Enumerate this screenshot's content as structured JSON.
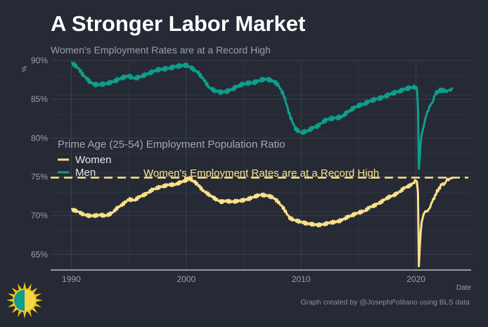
{
  "header": {
    "title": "A Stronger Labor Market",
    "subtitle": "Women's Employment Rates are at a Record High"
  },
  "credit": "Graph created by @JosephPolitano using BLS data",
  "colors": {
    "background": "#252a34",
    "women": "#ffe08a",
    "men": "#0f9e8c",
    "grid": "#363c48",
    "reference_line": "#ffe08a"
  },
  "logo_icon": "sun-logo-icon",
  "chart_data": {
    "type": "line",
    "title": "A Stronger Labor Market",
    "subtitle": "Women's Employment Rates are at a Record High",
    "xlabel": "Date",
    "ylabel": "%",
    "xlim": [
      1988.2,
      2024.8
    ],
    "ylim": [
      63,
      90
    ],
    "x_ticks": [
      1990,
      2000,
      2010,
      2020
    ],
    "x_tick_labels": [
      "1990",
      "2000",
      "2010",
      "2020"
    ],
    "y_ticks": [
      65,
      70,
      75,
      80,
      85,
      90
    ],
    "y_tick_labels": [
      "65%",
      "70%",
      "75%",
      "80%",
      "85%",
      "90%"
    ],
    "grid": true,
    "legend": {
      "title": "Prime Age (25-54) Employment Population Ratio",
      "placement": "left-middle",
      "entries": [
        "Women",
        "Men"
      ]
    },
    "reference_line": {
      "y": 74.9,
      "style": "dashed",
      "label": "Women's Employment Rates are at a Record High"
    },
    "series": [
      {
        "name": "Women",
        "x": [
          1990,
          1990.5,
          1991,
          1991.5,
          1992,
          1992.5,
          1993,
          1993.5,
          1994,
          1994.5,
          1995,
          1995.5,
          1996,
          1996.5,
          1997,
          1997.5,
          1998,
          1998.5,
          1999,
          1999.5,
          2000,
          2000.3,
          2000.7,
          2001,
          2001.5,
          2002,
          2002.5,
          2003,
          2003.5,
          2004,
          2004.5,
          2005,
          2005.5,
          2006,
          2006.5,
          2007,
          2007.5,
          2008,
          2008.5,
          2009,
          2009.5,
          2010,
          2010.5,
          2011,
          2011.5,
          2012,
          2012.5,
          2013,
          2013.5,
          2014,
          2014.5,
          2015,
          2015.5,
          2016,
          2016.5,
          2017,
          2017.5,
          2018,
          2018.5,
          2019,
          2019.5,
          2020,
          2020.08,
          2020.17,
          2020.25,
          2020.33,
          2020.42,
          2020.5,
          2020.67,
          2020.83,
          2021,
          2021.25,
          2021.5,
          2021.75,
          2022,
          2022.25,
          2022.5,
          2022.75,
          2023,
          2023.2
        ],
        "values": [
          70.8,
          70.6,
          70.2,
          70.0,
          70.0,
          70.1,
          70.0,
          70.3,
          71.0,
          71.5,
          72.1,
          72.0,
          72.5,
          72.8,
          73.3,
          73.6,
          73.8,
          74.0,
          74.0,
          74.3,
          74.6,
          74.8,
          74.4,
          74.0,
          73.2,
          72.7,
          72.2,
          71.8,
          71.9,
          71.8,
          71.9,
          72.0,
          72.2,
          72.5,
          72.7,
          72.6,
          72.4,
          71.8,
          70.9,
          69.7,
          69.4,
          69.2,
          69.0,
          68.9,
          68.8,
          68.9,
          69.1,
          69.2,
          69.4,
          69.8,
          70.1,
          70.4,
          70.6,
          71.1,
          71.4,
          71.8,
          72.3,
          72.6,
          73.0,
          73.6,
          73.9,
          74.5,
          74.4,
          73.0,
          63.5,
          66.0,
          68.0,
          69.2,
          70.2,
          70.6,
          70.5,
          71.3,
          72.0,
          72.9,
          73.5,
          74.0,
          74.2,
          74.6,
          74.8,
          74.9
        ]
      },
      {
        "name": "Men",
        "x": [
          1990,
          1990.5,
          1991,
          1991.5,
          1992,
          1992.5,
          1993,
          1993.5,
          1994,
          1994.5,
          1995,
          1995.5,
          1996,
          1996.5,
          1997,
          1997.5,
          1998,
          1998.5,
          1999,
          1999.5,
          2000,
          2000.5,
          2001,
          2001.5,
          2002,
          2002.5,
          2003,
          2003.5,
          2004,
          2004.5,
          2005,
          2005.5,
          2006,
          2006.5,
          2007,
          2007.5,
          2008,
          2008.5,
          2009,
          2009.5,
          2010,
          2010.5,
          2011,
          2011.5,
          2012,
          2012.5,
          2013,
          2013.5,
          2014,
          2014.5,
          2015,
          2015.5,
          2016,
          2016.5,
          2017,
          2017.5,
          2018,
          2018.5,
          2019,
          2019.5,
          2020,
          2020.08,
          2020.17,
          2020.25,
          2020.33,
          2020.42,
          2020.5,
          2020.67,
          2020.83,
          2021,
          2021.25,
          2021.5,
          2021.75,
          2022,
          2022.25,
          2022.5,
          2022.75,
          2023,
          2023.2
        ],
        "values": [
          89.7,
          89.2,
          88.2,
          87.4,
          86.9,
          86.9,
          87.0,
          87.2,
          87.5,
          87.8,
          88.0,
          87.7,
          87.9,
          88.2,
          88.5,
          88.8,
          88.9,
          89.0,
          89.2,
          89.3,
          89.4,
          89.0,
          88.5,
          87.6,
          86.5,
          86.1,
          85.9,
          86.0,
          86.3,
          86.7,
          87.0,
          87.1,
          87.2,
          87.5,
          87.6,
          87.4,
          86.9,
          85.5,
          83.0,
          81.2,
          80.7,
          80.9,
          81.3,
          81.6,
          82.2,
          82.5,
          82.6,
          82.7,
          83.3,
          83.8,
          84.2,
          84.4,
          84.8,
          85.0,
          85.2,
          85.5,
          85.8,
          86.0,
          86.3,
          86.5,
          86.6,
          86.5,
          84.0,
          76.0,
          77.6,
          79.5,
          80.5,
          81.5,
          82.6,
          83.4,
          84.1,
          85.0,
          85.8,
          86.1,
          86.2,
          86.0,
          86.2,
          86.1,
          86.5
        ]
      }
    ]
  }
}
